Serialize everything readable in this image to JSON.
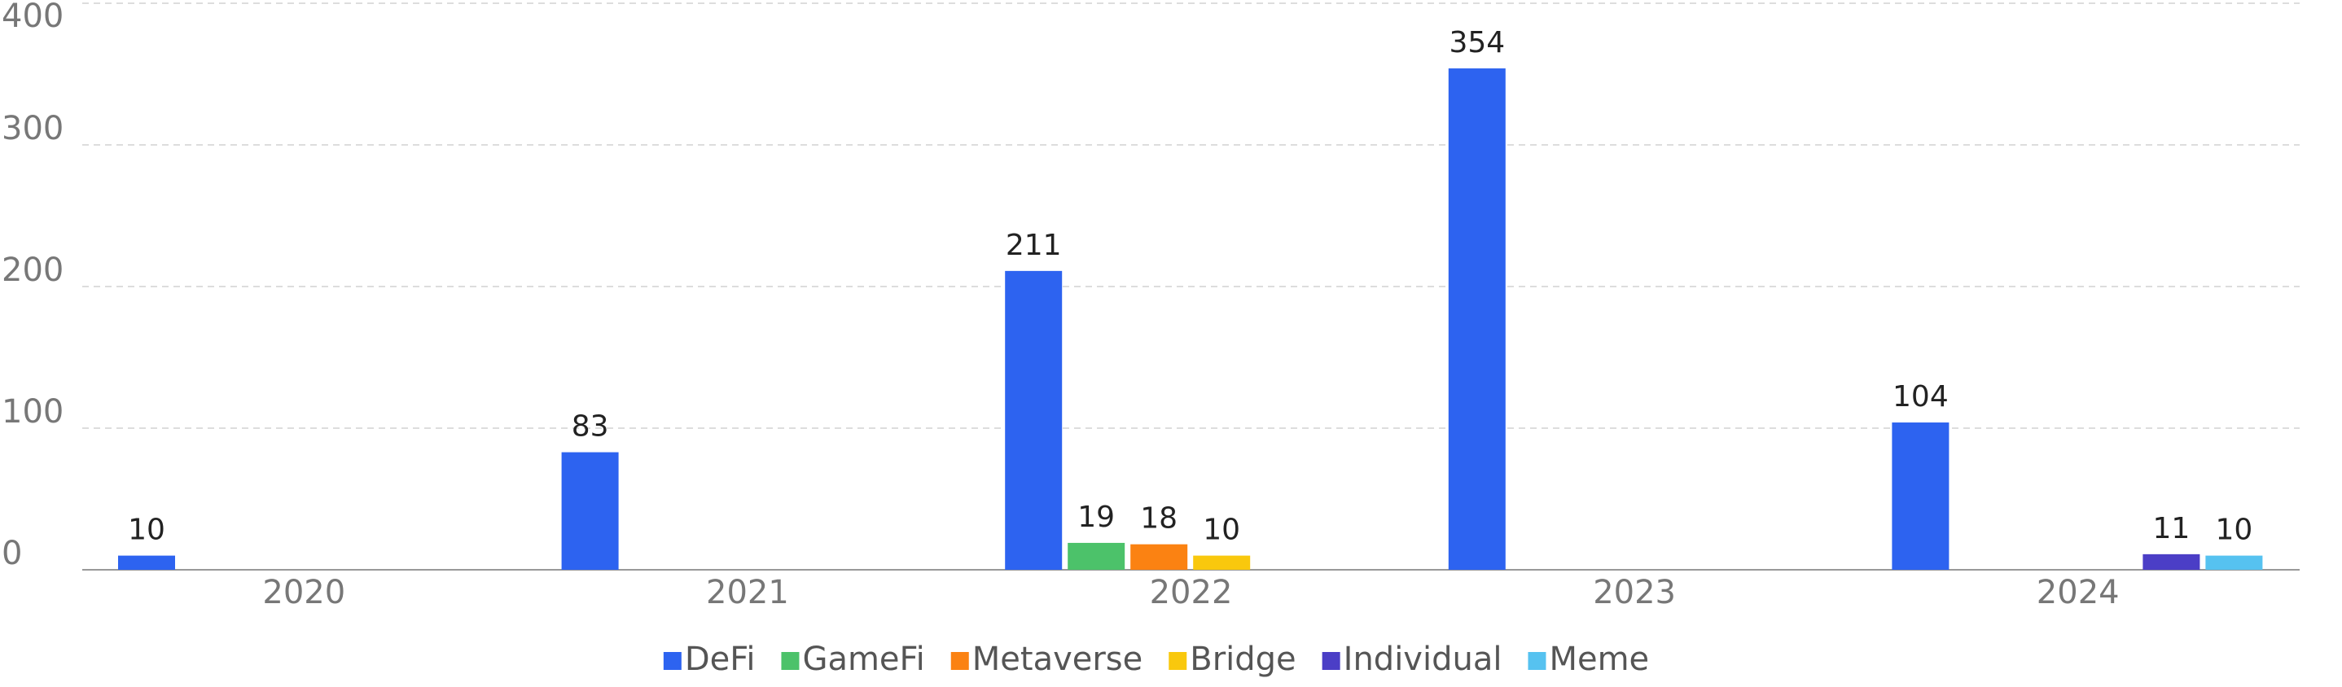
{
  "chart_data": {
    "type": "bar",
    "categories": [
      "2020",
      "2021",
      "2022",
      "2023",
      "2024"
    ],
    "series": [
      {
        "name": "DeFi",
        "color": "#2d63f0",
        "values": [
          10,
          83,
          211,
          354,
          104
        ]
      },
      {
        "name": "GameFi",
        "color": "#4cc26a",
        "values": [
          null,
          null,
          19,
          null,
          null
        ]
      },
      {
        "name": "Metaverse",
        "color": "#fb8212",
        "values": [
          null,
          null,
          18,
          null,
          null
        ]
      },
      {
        "name": "Bridge",
        "color": "#f9c80d",
        "values": [
          null,
          null,
          10,
          null,
          null
        ]
      },
      {
        "name": "Individual",
        "color": "#4b3ec6",
        "values": [
          null,
          null,
          null,
          null,
          11
        ]
      },
      {
        "name": "Meme",
        "color": "#56c2f0",
        "values": [
          null,
          null,
          null,
          null,
          10
        ]
      }
    ],
    "ylim": [
      0,
      400
    ],
    "yticks": [
      0,
      100,
      200,
      300,
      400
    ],
    "grid": true,
    "legend": "bottom"
  }
}
